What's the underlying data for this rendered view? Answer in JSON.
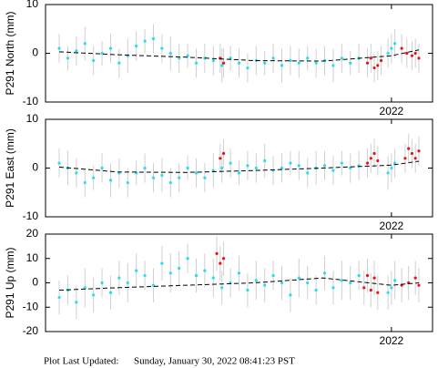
{
  "chart_data": [
    {
      "type": "scatter",
      "ylabel": "P291 North (mm)",
      "xlim": [
        2020.99,
        2022.12
      ],
      "xticks": [
        2022
      ],
      "ylim": [
        -10,
        10
      ],
      "yticks": [
        -10,
        0,
        10
      ],
      "series": [
        {
          "color": "#22e0f0",
          "x": [
            2021.03,
            2021.055,
            2021.08,
            2021.105,
            2021.13,
            2021.155,
            2021.18,
            2021.205,
            2021.23,
            2021.255,
            2021.28,
            2021.305,
            2021.33,
            2021.355,
            2021.38,
            2021.405,
            2021.43,
            2021.455,
            2021.48,
            2021.505,
            2021.53,
            2021.555,
            2021.58,
            2021.605,
            2021.63,
            2021.655,
            2021.68,
            2021.705,
            2021.73,
            2021.755,
            2021.78,
            2021.805,
            2021.83,
            2021.855,
            2021.88,
            2021.905,
            2021.99,
            2022.0,
            2022.01
          ],
          "values": [
            1,
            -1,
            0.5,
            2,
            -1.5,
            0,
            1,
            -2,
            -0.5,
            1.5,
            2.5,
            3,
            1,
            0,
            -1,
            -0.5,
            -2,
            -1,
            -1.5,
            -2.5,
            -1,
            -2,
            -3,
            -1.5,
            -2,
            -1,
            -2.5,
            -1.5,
            -2,
            -1,
            -2,
            -1.5,
            -2.5,
            -1,
            -2,
            -1,
            0,
            1,
            2
          ],
          "errors": [
            3,
            2.5,
            3,
            3.5,
            3,
            2.5,
            3,
            3,
            3.5,
            3,
            2.5,
            3,
            3,
            3.5,
            3,
            2.5,
            3,
            3,
            3,
            3.5,
            2.5,
            3,
            3,
            3,
            2.5,
            3,
            3.5,
            3,
            3,
            2.5,
            3,
            3,
            3.5,
            3,
            2.5,
            3,
            3,
            3,
            3
          ]
        },
        {
          "color": "#e8141c",
          "x": [
            2021.5,
            2021.51,
            2021.93,
            2021.94,
            2021.95,
            2021.96,
            2021.97,
            2022.03,
            2022.045,
            2022.06,
            2022.07,
            2022.08
          ],
          "values": [
            -1,
            -2,
            -2,
            -1,
            -3,
            -2.5,
            -1.5,
            1,
            0,
            -0.5,
            0,
            -1
          ],
          "errors": [
            3,
            3,
            3,
            3,
            3,
            3,
            3,
            3,
            3,
            3,
            3,
            3
          ]
        },
        {
          "type": "line",
          "color": "#000000",
          "dashed": true,
          "x": [
            2021.03,
            2021.2,
            2021.4,
            2021.6,
            2021.8,
            2022.0,
            2022.08
          ],
          "values": [
            0.3,
            -0.3,
            -0.8,
            -1.5,
            -1.6,
            -0.5,
            0.7
          ]
        }
      ]
    },
    {
      "type": "scatter",
      "ylabel": "P291 East (mm)",
      "xlim": [
        2020.99,
        2022.12
      ],
      "xticks": [
        2022
      ],
      "ylim": [
        -10,
        10
      ],
      "yticks": [
        -10,
        0,
        10
      ],
      "series": [
        {
          "color": "#22e0f0",
          "x": [
            2021.03,
            2021.055,
            2021.08,
            2021.105,
            2021.13,
            2021.155,
            2021.18,
            2021.205,
            2021.23,
            2021.255,
            2021.28,
            2021.305,
            2021.33,
            2021.355,
            2021.38,
            2021.405,
            2021.43,
            2021.455,
            2021.48,
            2021.505,
            2021.53,
            2021.555,
            2021.58,
            2021.605,
            2021.63,
            2021.655,
            2021.68,
            2021.705,
            2021.73,
            2021.755,
            2021.78,
            2021.805,
            2021.83,
            2021.855,
            2021.88,
            2021.905,
            2021.99,
            2022.0,
            2022.01
          ],
          "values": [
            1,
            0,
            -1,
            -3,
            -2,
            0,
            -2.5,
            -1,
            -3,
            -1,
            0,
            -2,
            -1.5,
            -3,
            -2,
            0,
            -1,
            -2,
            -0.5,
            0,
            1,
            -1,
            0.5,
            0,
            1.5,
            -0.5,
            0,
            1,
            0.5,
            -1,
            0,
            0.5,
            -0.5,
            1,
            0,
            0.5,
            -1,
            0,
            1
          ],
          "errors": [
            3,
            3.5,
            3,
            3,
            2.5,
            3,
            3.5,
            3,
            3,
            2.5,
            3,
            3,
            3.5,
            3,
            3,
            2.5,
            3,
            3,
            3.5,
            3,
            3,
            2.5,
            3,
            3,
            3.5,
            3,
            3,
            2.5,
            3,
            3,
            3.5,
            3,
            3,
            2.5,
            3,
            3,
            3.5,
            3,
            3
          ]
        },
        {
          "color": "#e8141c",
          "x": [
            2021.5,
            2021.51,
            2021.93,
            2021.94,
            2021.95,
            2021.96,
            2022.04,
            2022.05,
            2022.06,
            2022.07,
            2022.08
          ],
          "values": [
            2,
            3,
            1,
            2,
            3,
            1.5,
            2,
            4,
            3,
            2,
            3.5
          ],
          "errors": [
            3,
            3,
            3,
            3,
            3,
            3,
            3,
            3,
            3,
            3,
            3
          ]
        },
        {
          "type": "line",
          "color": "#000000",
          "dashed": true,
          "x": [
            2021.03,
            2021.2,
            2021.4,
            2021.6,
            2021.8,
            2022.0,
            2022.08
          ],
          "values": [
            0.2,
            -0.8,
            -0.9,
            -0.5,
            0,
            0.6,
            1.4
          ]
        }
      ]
    },
    {
      "type": "scatter",
      "ylabel": "P291 Up (mm)",
      "xlim": [
        2020.99,
        2022.12
      ],
      "xticks": [
        2022
      ],
      "ylim": [
        -20,
        20
      ],
      "yticks": [
        -20,
        -10,
        0,
        10,
        20
      ],
      "series": [
        {
          "color": "#22e0f0",
          "x": [
            2021.03,
            2021.055,
            2021.08,
            2021.105,
            2021.13,
            2021.155,
            2021.18,
            2021.205,
            2021.23,
            2021.255,
            2021.28,
            2021.305,
            2021.33,
            2021.355,
            2021.38,
            2021.405,
            2021.43,
            2021.455,
            2021.48,
            2021.505,
            2021.53,
            2021.555,
            2021.58,
            2021.605,
            2021.63,
            2021.655,
            2021.68,
            2021.705,
            2021.73,
            2021.755,
            2021.78,
            2021.805,
            2021.83,
            2021.855,
            2021.88,
            2021.905,
            2021.99,
            2022.0,
            2022.01
          ],
          "values": [
            -6,
            -3,
            -8,
            -2,
            -5,
            0,
            -4,
            2,
            0,
            5,
            3,
            -1,
            8,
            4,
            6,
            10,
            3,
            5,
            2,
            -2,
            0,
            4,
            -3,
            1,
            -1,
            3,
            0,
            -5,
            2,
            0,
            -3,
            4,
            -2,
            1,
            0,
            3,
            -4,
            -2,
            1
          ],
          "errors": [
            7,
            6,
            7,
            8,
            7,
            6,
            7,
            7,
            8,
            7,
            6,
            7,
            7,
            8,
            7,
            6,
            7,
            7,
            8,
            7,
            6,
            7,
            7,
            8,
            7,
            6,
            7,
            7,
            8,
            7,
            6,
            7,
            7,
            8,
            7,
            6,
            7,
            7,
            8
          ]
        },
        {
          "color": "#e8141c",
          "x": [
            2021.49,
            2021.5,
            2021.51,
            2021.92,
            2021.93,
            2021.94,
            2021.95,
            2021.96,
            2022.03,
            2022.05,
            2022.07,
            2022.08
          ],
          "values": [
            12,
            8,
            10,
            -2,
            3,
            -3,
            2,
            -4,
            -1,
            0,
            2,
            -1
          ],
          "errors": [
            7,
            7,
            7,
            7,
            7,
            7,
            7,
            7,
            7,
            7,
            7,
            7
          ]
        },
        {
          "type": "line",
          "color": "#000000",
          "dashed": true,
          "x": [
            2021.03,
            2021.2,
            2021.4,
            2021.6,
            2021.8,
            2022.0,
            2022.08
          ],
          "values": [
            -3,
            -2,
            -1,
            0,
            2,
            -1,
            0
          ]
        }
      ]
    }
  ],
  "footer": {
    "label": "Plot Last Updated:",
    "timestamp": "Sunday, January 30, 2022 08:41:23 PST"
  }
}
